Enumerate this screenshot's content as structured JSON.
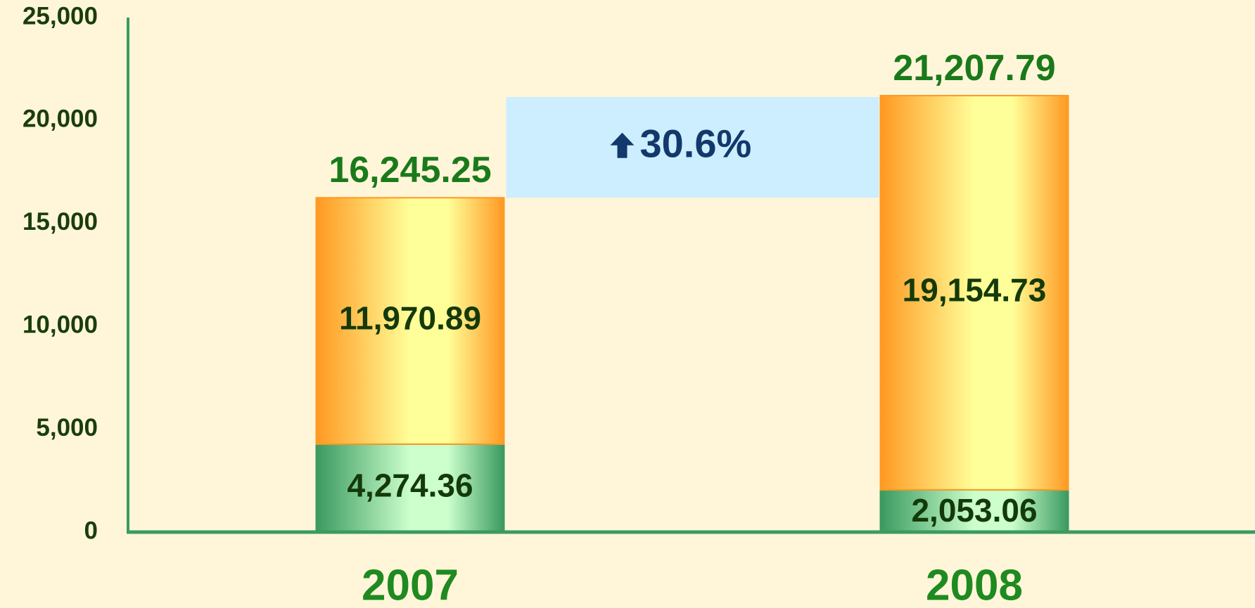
{
  "chart_data": {
    "type": "stacked_bar",
    "categories": [
      "2007",
      "2008"
    ],
    "series": [
      {
        "color": "#3a9a60",
        "values": [
          4274.36,
          2053.06
        ],
        "value_labels": [
          "4,274.36",
          "2,053.06"
        ]
      },
      {
        "color": "#ff9922",
        "values": [
          11970.89,
          19154.73
        ],
        "value_labels": [
          "11,970.89",
          "19,154.73"
        ]
      }
    ],
    "totals": [
      16245.25,
      21207.79
    ],
    "total_labels": [
      "16,245.25",
      "21,207.79"
    ],
    "annotation": "30.6%",
    "ylim": [
      0,
      25000
    ],
    "yticks": [
      0,
      {
        "value": 5000,
        "label": "5,000"
      },
      {
        "value": 10000,
        "label": "10,000"
      },
      {
        "value": 15000,
        "label": "15,000"
      },
      {
        "value": 20000,
        "label": "20,000"
      },
      {
        "value": 25000,
        "label": "25,000"
      }
    ],
    "grid": false
  }
}
